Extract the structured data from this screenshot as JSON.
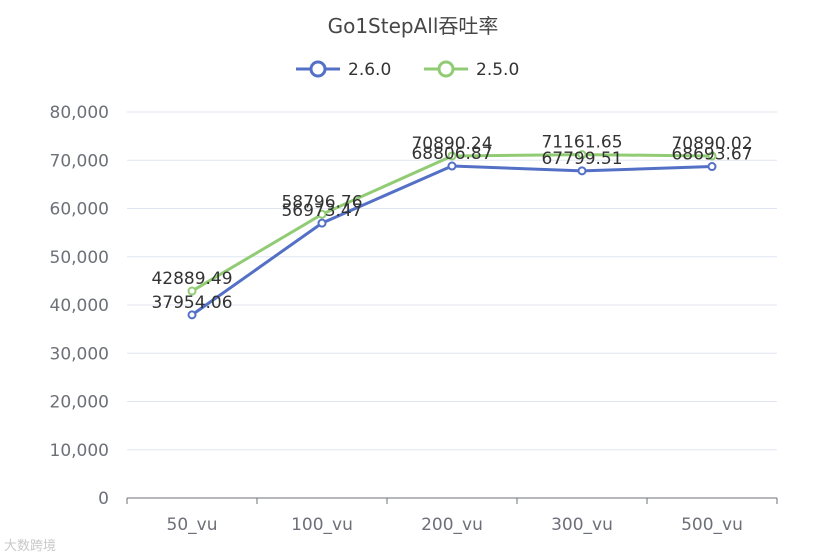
{
  "chart_data": {
    "type": "line",
    "title": "Go1StepAll吞吐率",
    "categories": [
      "50_vu",
      "100_vu",
      "200_vu",
      "300_vu",
      "500_vu"
    ],
    "ylim": [
      0,
      80000
    ],
    "y_ticks": [
      "0",
      "10,000",
      "20,000",
      "30,000",
      "40,000",
      "50,000",
      "60,000",
      "70,000",
      "80,000"
    ],
    "grid": true,
    "legend_position": "top",
    "series": [
      {
        "name": "2.6.0",
        "color": "#5470c6",
        "values": [
          37954.06,
          56973.47,
          68806.87,
          67799.51,
          68693.67
        ],
        "labels": [
          "37954.06",
          "56973.47",
          "68806.87",
          "67799.51",
          "68693.67"
        ]
      },
      {
        "name": "2.5.0",
        "color": "#91cc75",
        "values": [
          42889.49,
          58796.76,
          70890.24,
          71161.65,
          70890.02
        ],
        "labels": [
          "42889.49",
          "58796.76",
          "70890.24",
          "71161.65",
          "70890.02"
        ]
      }
    ]
  },
  "watermark": "大数跨境"
}
